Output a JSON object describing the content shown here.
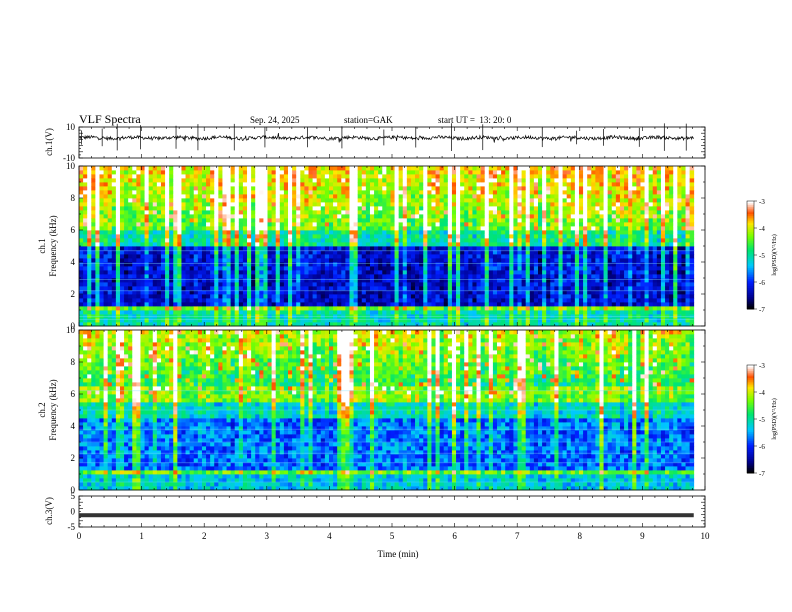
{
  "header": {
    "title": "VLF Spectra",
    "date": "Sep. 24, 2025",
    "station": "station=GAK",
    "start": "start UT =  13: 20: 0"
  },
  "chart_data": [
    {
      "type": "line",
      "ylabel": "ch.1(V)",
      "ylim": [
        -10,
        10
      ],
      "yticks": [
        "10",
        "-10"
      ],
      "baseline": 3,
      "spikes_min": [
        0.04,
        0.37,
        0.61,
        0.98,
        1.55,
        1.9,
        2.48,
        2.97,
        3.65,
        4.2,
        4.87,
        5.38,
        5.95,
        6.45,
        7.4,
        7.95,
        8.38,
        8.95,
        9.35,
        9.7
      ]
    },
    {
      "type": "heatmap",
      "ylabel": "ch.1 Frequency (kHz)",
      "ylim": [
        0,
        10
      ],
      "yticks": [
        "0",
        "2",
        "4",
        "6",
        "8",
        "10"
      ],
      "colorbar": {
        "label": "log(PSD)(V²/Hz)",
        "ticks": [
          "-3",
          "-4",
          "-5",
          "-6",
          "-7"
        ],
        "range": [
          -7,
          -3
        ]
      }
    },
    {
      "type": "heatmap",
      "ylabel": "ch.2 Frequency (kHz)",
      "ylim": [
        0,
        10
      ],
      "yticks": [
        "0",
        "2",
        "4",
        "6",
        "8",
        "10"
      ],
      "colorbar": {
        "label": "log(PSD)(V²/Hz)",
        "ticks": [
          "-3",
          "-4",
          "-5",
          "-6",
          "-7"
        ],
        "range": [
          -7,
          -3
        ]
      }
    },
    {
      "type": "line",
      "ylabel": "ch.3(V)",
      "ylim": [
        -5,
        5
      ],
      "yticks": [
        "5",
        "0",
        "-5"
      ],
      "baseline": -1.2,
      "xlabel": "Time (min)",
      "xlim": [
        0,
        10
      ],
      "xticks": [
        "0",
        "1",
        "2",
        "3",
        "4",
        "5",
        "6",
        "7",
        "8",
        "9",
        "10"
      ]
    }
  ]
}
